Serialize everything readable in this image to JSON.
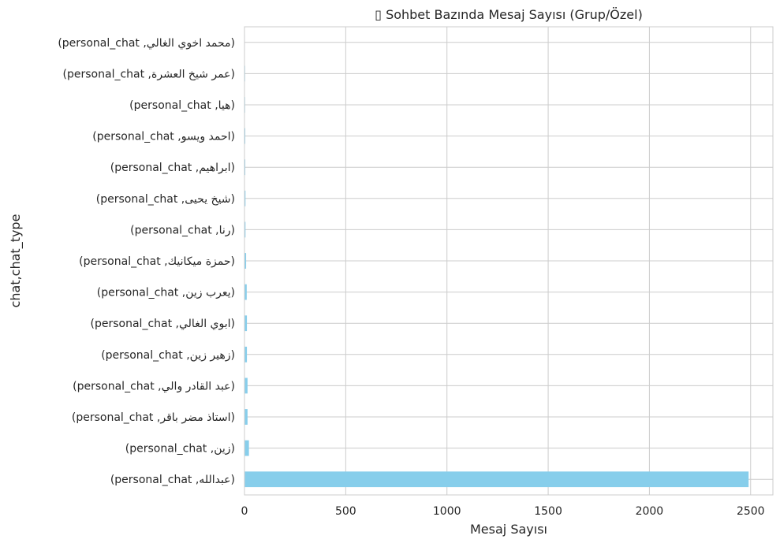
{
  "chart_data": {
    "type": "bar",
    "orientation": "horizontal",
    "title": "▯ Sohbet Bazında Mesaj Sayısı (Grup/Özel)",
    "xlabel": "Mesaj Sayısı",
    "ylabel": "chat,chat_type",
    "xlim": [
      0,
      2610
    ],
    "xticks": [
      0,
      500,
      1000,
      1500,
      2000,
      2500
    ],
    "grid": true,
    "categories": [
      "(عبدالله, personal_chat)",
      "(زين, personal_chat)",
      "(استاذ مضر باقر, personal_chat)",
      "(عبد القادر والي, personal_chat)",
      "(زهير زين, personal_chat)",
      "(ابوي الغالي, personal_chat)",
      "(يعرب زين, personal_chat)",
      "(حمزة ميكانيك, personal_chat)",
      "(رنا, personal_chat)",
      "(شيخ يحيى, personal_chat)",
      "(ابراهيم, personal_chat)",
      "(احمد ويسو, personal_chat)",
      "(هيا, personal_chat)",
      "(عمر شيخ العشرة, personal_chat)",
      "(محمد اخوي الغالي, personal_chat)"
    ],
    "values": [
      2490,
      22,
      15,
      15,
      12,
      12,
      11,
      8,
      5,
      5,
      4,
      4,
      3,
      3,
      2
    ],
    "colors": {
      "bar": "#87ceeb",
      "grid": "#cccccc",
      "spine": "#cccccc",
      "text": "#262626"
    }
  }
}
